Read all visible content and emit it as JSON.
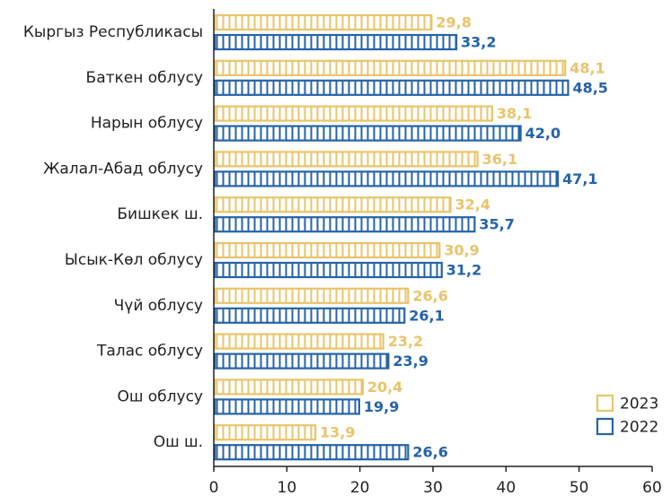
{
  "chart_data": {
    "type": "bar",
    "orientation": "horizontal",
    "categories": [
      "Кыргыз Республикасы",
      "Баткен облусу",
      "Нарын облусу",
      "Жалал-Абад облусу",
      "Бишкек ш.",
      "Ысык-Көл облусу",
      "Чүй облусу",
      "Талас облусу",
      "Ош облусу",
      "Ош ш."
    ],
    "series": [
      {
        "name": "2023",
        "color": "#e9c46a",
        "values": [
          29.8,
          48.1,
          38.1,
          36.1,
          32.4,
          30.9,
          26.6,
          23.2,
          20.4,
          13.9
        ],
        "value_labels": [
          "29,8",
          "48,1",
          "38,1",
          "36,1",
          "32,4",
          "30,9",
          "26,6",
          "23,2",
          "20,4",
          "13,9"
        ]
      },
      {
        "name": "2022",
        "color": "#2563a8",
        "values": [
          33.2,
          48.5,
          42.0,
          47.1,
          35.7,
          31.2,
          26.1,
          23.9,
          19.9,
          26.6
        ],
        "value_labels": [
          "33,2",
          "48,5",
          "42,0",
          "47,1",
          "35,7",
          "31,2",
          "26,1",
          "23,9",
          "19,9",
          "26,6"
        ]
      }
    ],
    "xlim": [
      0,
      60
    ],
    "xticks": [
      0,
      10,
      20,
      30,
      40,
      50,
      60
    ],
    "legend": "lower right"
  }
}
